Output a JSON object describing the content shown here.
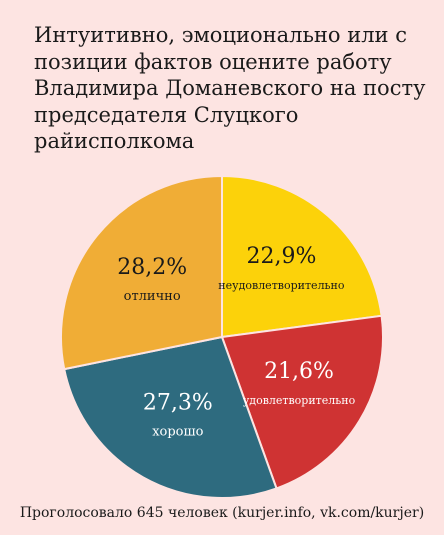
{
  "chart_data": {
    "type": "pie",
    "title_lines": [
      "Интуитивно, эмоционально или с",
      "позиции фактов оцените работу",
      "Владимира Доманевского на посту",
      "председателя Слуцкого",
      "райисполкома"
    ],
    "slices": [
      {
        "label": "неудовлетворительно",
        "value": 22.9,
        "value_text": "22,9%",
        "color": "#fcd20a"
      },
      {
        "label": "удовлетворительно",
        "value": 21.6,
        "value_text": "21,6%",
        "color": "#cf3333"
      },
      {
        "label": "хорошо",
        "value": 27.3,
        "value_text": "27,3%",
        "color": "#2e6b7f"
      },
      {
        "label": "отлично",
        "value": 28.2,
        "value_text": "28,2%",
        "color": "#f0ad36"
      }
    ],
    "start": "top",
    "direction": "clockwise"
  },
  "footer": "Проголосовало 645 человек (kurjer.info, vk.com/kurjer)"
}
